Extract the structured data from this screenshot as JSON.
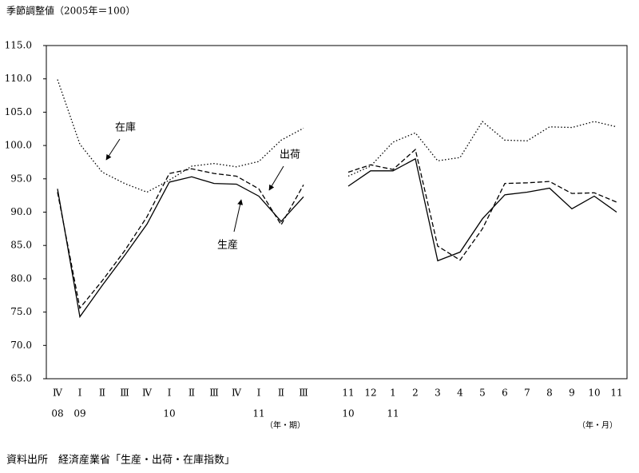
{
  "chart_data": {
    "type": "line",
    "title": "季節調整値（2005年＝100）",
    "source": "資料出所　経済産業省「生産・出荷・在庫指数」",
    "categories": [
      "Ⅳ",
      "Ⅰ",
      "Ⅱ",
      "Ⅲ",
      "Ⅳ",
      "Ⅰ",
      "Ⅱ",
      "Ⅲ",
      "Ⅳ",
      "Ⅰ",
      "Ⅱ",
      "Ⅲ",
      null,
      "11",
      "12",
      "1",
      "2",
      "3",
      "4",
      "5",
      "6",
      "7",
      "8",
      "9",
      "10",
      "11"
    ],
    "category_years": [
      "08",
      "09",
      null,
      null,
      null,
      "10",
      null,
      null,
      null,
      "11",
      null,
      null,
      null,
      "10",
      null,
      "11",
      null,
      null,
      null,
      null,
      null,
      null,
      null,
      null,
      null,
      null
    ],
    "x_unit_labels": [
      "（年・期）",
      "（年・月）"
    ],
    "series": [
      {
        "name": "生産",
        "color": "#000000",
        "dash": "solid",
        "values": [
          93.5,
          74.3,
          79.0,
          83.5,
          88.2,
          94.5,
          95.3,
          94.3,
          94.2,
          92.4,
          88.6,
          92.3,
          null,
          93.9,
          96.2,
          96.2,
          98.0,
          82.7,
          84.0,
          89.0,
          92.6,
          93.0,
          93.6,
          90.5,
          92.4,
          90.0
        ]
      },
      {
        "name": "出荷",
        "color": "#000000",
        "dash": "dashed",
        "values": [
          93.0,
          75.6,
          79.7,
          84.2,
          89.3,
          95.8,
          96.5,
          95.8,
          95.4,
          93.5,
          88.1,
          94.1,
          null,
          96.0,
          97.1,
          96.4,
          99.4,
          84.9,
          82.8,
          87.5,
          94.3,
          94.4,
          94.6,
          92.8,
          92.9,
          91.5
        ]
      },
      {
        "name": "在庫",
        "color": "#000000",
        "dash": "dotted",
        "values": [
          109.9,
          100.2,
          96.0,
          94.3,
          93.0,
          94.8,
          96.9,
          97.3,
          96.8,
          97.6,
          100.8,
          102.6,
          null,
          95.4,
          96.9,
          100.5,
          101.9,
          97.7,
          98.2,
          103.6,
          100.8,
          100.7,
          102.8,
          102.7,
          103.6,
          102.8
        ]
      }
    ],
    "ylim": [
      65,
      115
    ],
    "yticks": [
      {
        "value": 65,
        "label": "65.0"
      },
      {
        "value": 70,
        "label": "70.0"
      },
      {
        "value": 75,
        "label": "75.0"
      },
      {
        "value": 80,
        "label": "80.0"
      },
      {
        "value": 85,
        "label": "85.0"
      },
      {
        "value": 90,
        "label": "90.0"
      },
      {
        "value": 95,
        "label": "95.0"
      },
      {
        "value": 100,
        "label": "100.0"
      },
      {
        "value": 105,
        "label": "105.0"
      },
      {
        "value": 110,
        "label": "110.0"
      },
      {
        "value": 115,
        "label": "115.0"
      }
    ],
    "grid": false
  }
}
